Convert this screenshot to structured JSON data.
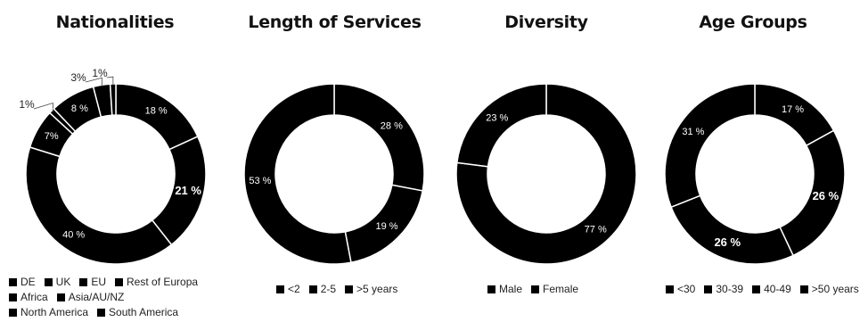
{
  "chart_data": [
    {
      "type": "pie",
      "title": "Nationalities",
      "categories": [
        "DE",
        "UK",
        "EU",
        "Rest of Europa",
        "Africa",
        "Asia/AU/NZ",
        "North America",
        "South America"
      ],
      "values": [
        18,
        21,
        40,
        7,
        1,
        8,
        3,
        1
      ],
      "labels": [
        "18 %",
        "21 %",
        "40 %",
        "7%",
        "1%",
        "8 %",
        "3%",
        "1%"
      ],
      "legend_rows": [
        [
          0,
          1,
          2,
          3
        ],
        [
          4,
          5
        ],
        [
          6,
          7
        ]
      ],
      "legend": "bottom"
    },
    {
      "type": "pie",
      "title": "Length of Services",
      "categories": [
        "<2",
        "2-5",
        ">5 years"
      ],
      "values": [
        28,
        19,
        53
      ],
      "labels": [
        "28 %",
        "19 %",
        "53 %"
      ],
      "legend_rows": [
        [
          0,
          1,
          2
        ]
      ],
      "legend": "bottom"
    },
    {
      "type": "pie",
      "title": "Diversity",
      "categories": [
        "Male",
        "Female"
      ],
      "values": [
        77,
        23
      ],
      "labels": [
        "77 %",
        "23 %"
      ],
      "legend_rows": [
        [
          0,
          1
        ]
      ],
      "legend": "bottom"
    },
    {
      "type": "pie",
      "title": "Age Groups",
      "categories": [
        "<30",
        "30-39",
        "40-49",
        ">50 years"
      ],
      "values": [
        17,
        26,
        26,
        31
      ],
      "labels": [
        "17 %",
        "26 %",
        "26 %",
        "31 %"
      ],
      "legend_rows": [
        [
          0,
          1,
          2,
          3
        ]
      ],
      "legend": "bottom"
    }
  ],
  "colors": {
    "slice": "#000000",
    "separator": "#ffffff",
    "label": "#ffffff",
    "outside_label": "#222222"
  }
}
